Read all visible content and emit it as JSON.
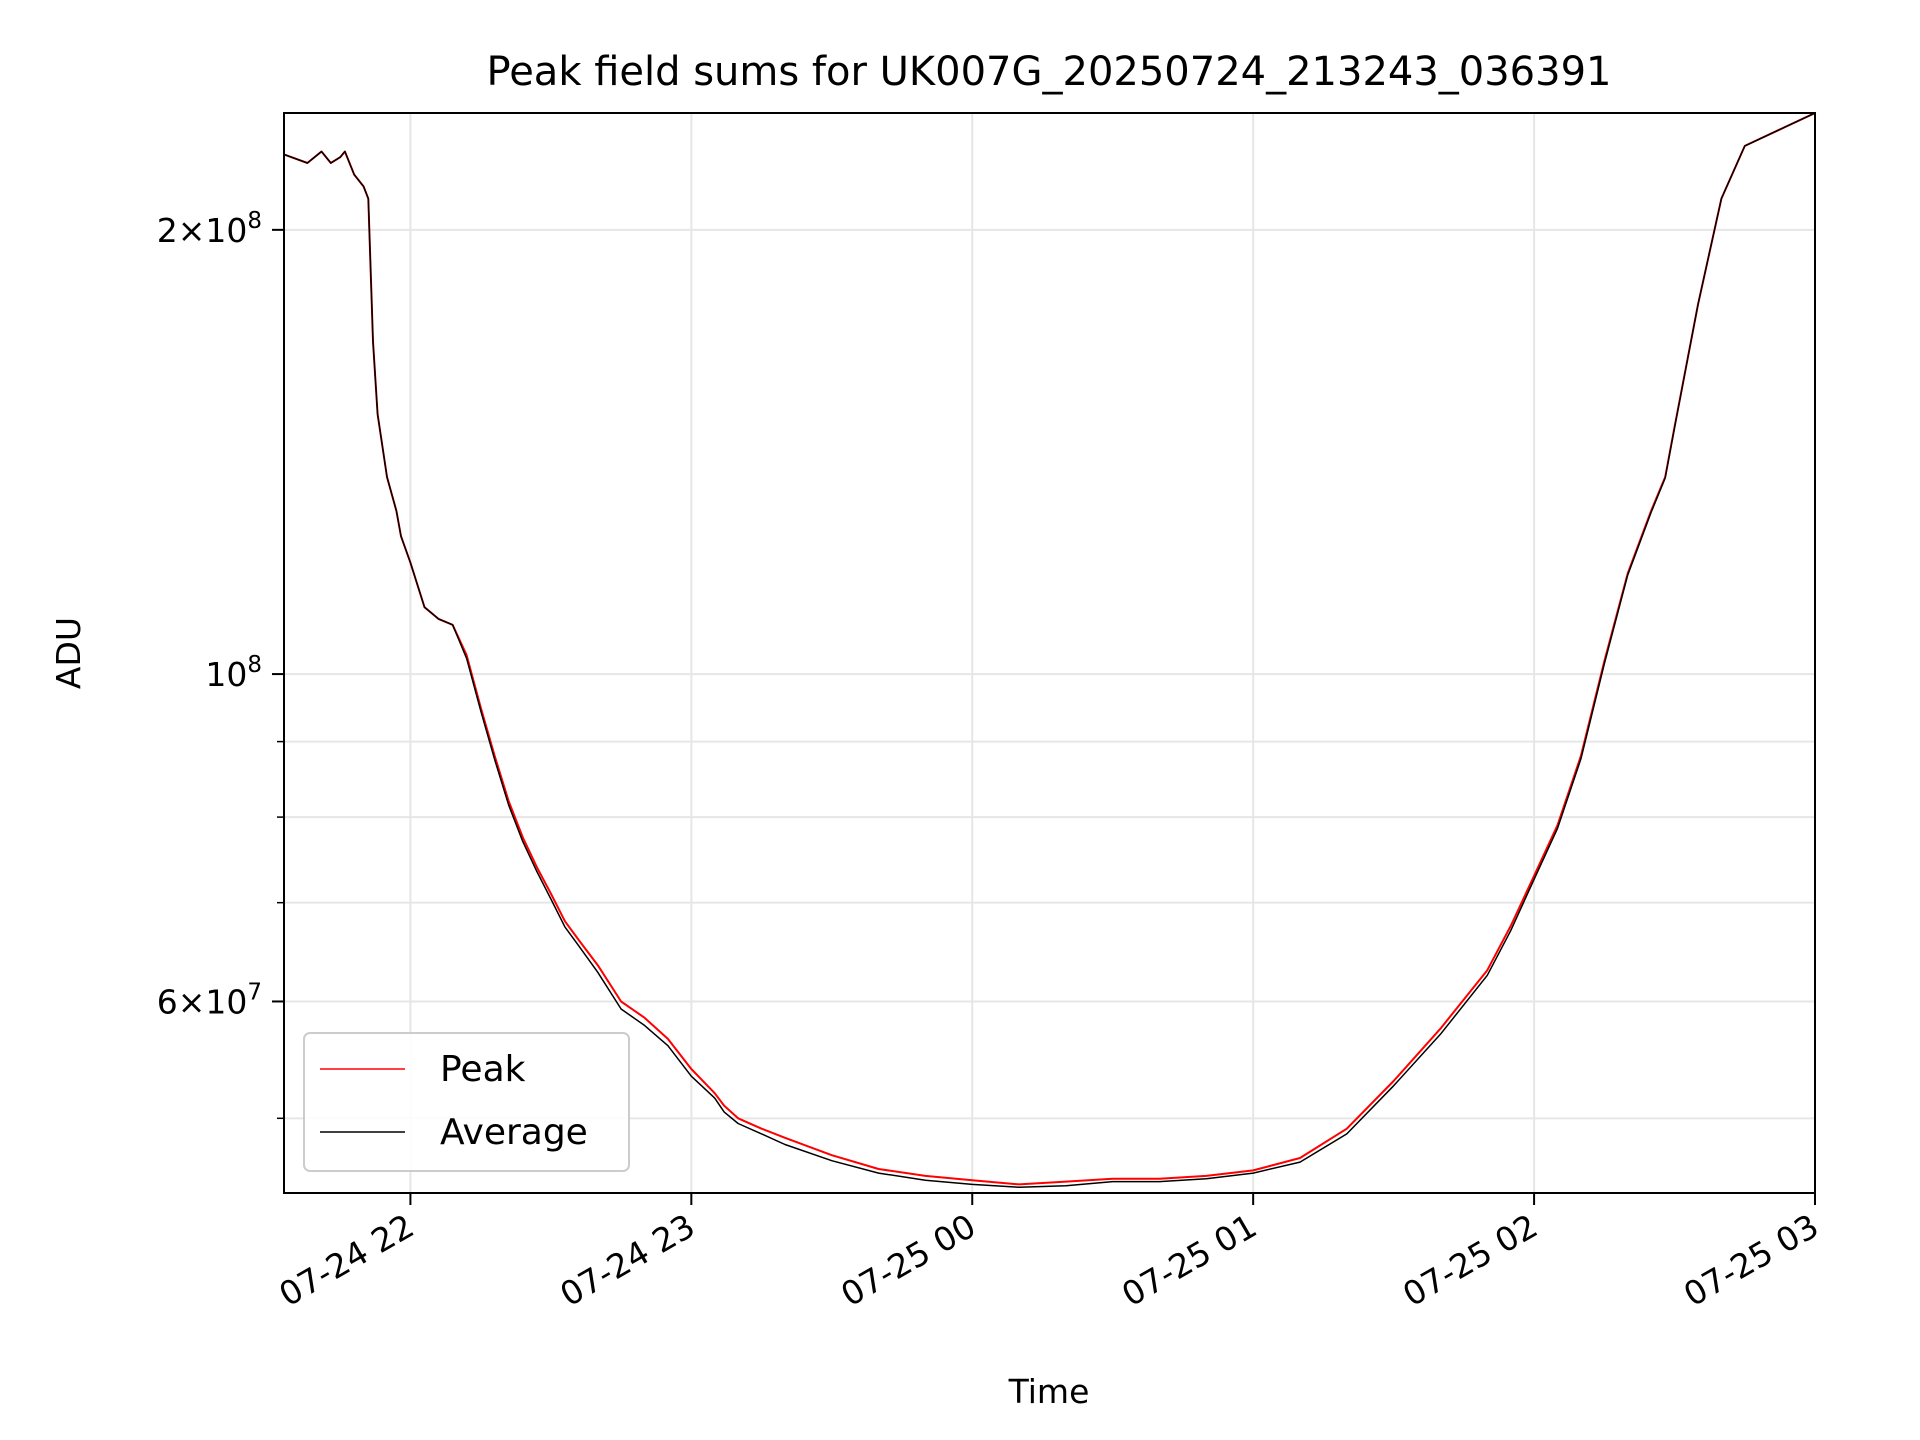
{
  "chart_data": {
    "type": "line",
    "title": "Peak field sums for UK007G_20250724_213243_036391",
    "xlabel": "Time",
    "ylabel": "ADU",
    "y_scale": "log",
    "xlim": [
      "2025-07-24T21:33",
      "2025-07-25T03:00"
    ],
    "ylim": [
      44500000,
      240000000
    ],
    "grid": true,
    "legend_position": "lower-left",
    "x_ticks": [
      "07-24 22",
      "07-24 23",
      "07-25 00",
      "07-25 01",
      "07-25 02",
      "07-25 03"
    ],
    "y_major_ticks": [
      {
        "value": 200000000,
        "mantissa": "2",
        "exponent": "8"
      },
      {
        "value": 100000000,
        "mantissa": "",
        "exponent": "8"
      },
      {
        "value": 60000000,
        "mantissa": "6",
        "exponent": "7"
      }
    ],
    "y_minor_ticks": [
      50000000,
      70000000,
      80000000,
      90000000
    ],
    "x": [
      "2025-07-24T21:33",
      "2025-07-24T21:38",
      "2025-07-24T21:41",
      "2025-07-24T21:43",
      "2025-07-24T21:45",
      "2025-07-24T21:46",
      "2025-07-24T21:48",
      "2025-07-24T21:50",
      "2025-07-24T21:51",
      "2025-07-24T21:52",
      "2025-07-24T21:53",
      "2025-07-24T21:55",
      "2025-07-24T21:57",
      "2025-07-24T21:58",
      "2025-07-24T22:00",
      "2025-07-24T22:03",
      "2025-07-24T22:06",
      "2025-07-24T22:09",
      "2025-07-24T22:12",
      "2025-07-24T22:15",
      "2025-07-24T22:18",
      "2025-07-24T22:21",
      "2025-07-24T22:24",
      "2025-07-24T22:27",
      "2025-07-24T22:30",
      "2025-07-24T22:33",
      "2025-07-24T22:36",
      "2025-07-24T22:40",
      "2025-07-24T22:45",
      "2025-07-24T22:50",
      "2025-07-24T22:55",
      "2025-07-24T23:00",
      "2025-07-24T23:05",
      "2025-07-24T23:07",
      "2025-07-24T23:10",
      "2025-07-24T23:15",
      "2025-07-24T23:20",
      "2025-07-24T23:30",
      "2025-07-24T23:40",
      "2025-07-24T23:50",
      "2025-07-25T00:00",
      "2025-07-25T00:10",
      "2025-07-25T00:20",
      "2025-07-25T00:30",
      "2025-07-25T00:40",
      "2025-07-25T00:50",
      "2025-07-25T01:00",
      "2025-07-25T01:10",
      "2025-07-25T01:20",
      "2025-07-25T01:30",
      "2025-07-25T01:40",
      "2025-07-25T01:50",
      "2025-07-25T01:55",
      "2025-07-25T02:00",
      "2025-07-25T02:05",
      "2025-07-25T02:10",
      "2025-07-25T02:15",
      "2025-07-25T02:20",
      "2025-07-25T02:25",
      "2025-07-25T02:28",
      "2025-07-25T02:30",
      "2025-07-25T02:35",
      "2025-07-25T02:40",
      "2025-07-25T02:45",
      "2025-07-25T03:00"
    ],
    "series": [
      {
        "name": "Peak",
        "color": "#ff0000",
        "values": [
          225000000,
          222000000,
          226000000,
          222000000,
          224000000,
          226000000,
          218000000,
          214000000,
          210000000,
          168000000,
          150000000,
          136000000,
          129000000,
          124000000,
          119000000,
          111000000,
          109000000,
          108000000,
          103000000,
          95000000,
          88000000,
          82000000,
          77500000,
          74000000,
          71000000,
          68000000,
          66000000,
          63500000,
          60000000,
          58500000,
          56600000,
          54000000,
          52000000,
          51000000,
          50000000,
          49200000,
          48500000,
          47200000,
          46200000,
          45700000,
          45400000,
          45100000,
          45300000,
          45500000,
          45500000,
          45700000,
          46100000,
          47000000,
          49200000,
          53000000,
          57500000,
          63000000,
          67500000,
          73000000,
          79000000,
          88000000,
          102000000,
          117000000,
          129000000,
          136000000,
          147000000,
          178000000,
          210000000,
          228000000,
          240000000
        ]
      },
      {
        "name": "Average",
        "color": "#000000",
        "values": [
          225000000,
          222000000,
          226000000,
          222000000,
          224000000,
          226000000,
          218000000,
          214000000,
          210000000,
          168000000,
          150000000,
          136000000,
          129000000,
          124000000,
          119000000,
          111000000,
          109000000,
          108000000,
          102500000,
          94500000,
          87500000,
          81500000,
          77000000,
          73500000,
          70400000,
          67400000,
          65400000,
          62800000,
          59300000,
          57800000,
          56000000,
          53400000,
          51600000,
          50500000,
          49600000,
          48800000,
          48000000,
          46800000,
          45900000,
          45400000,
          45100000,
          44900000,
          45000000,
          45300000,
          45300000,
          45500000,
          45900000,
          46700000,
          48800000,
          52600000,
          57000000,
          62500000,
          67000000,
          72600000,
          78600000,
          87600000,
          101600000,
          116700000,
          128700000,
          135800000,
          146800000,
          178000000,
          210000000,
          228000000,
          240000000
        ]
      }
    ]
  }
}
